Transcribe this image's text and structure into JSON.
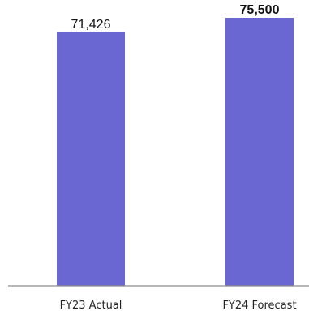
{
  "chart_data": {
    "type": "bar",
    "categories": [
      "FY23 Actual",
      "FY24 Forecast"
    ],
    "values": [
      71426,
      75500
    ],
    "data_labels": [
      "71,426",
      "75,500"
    ],
    "data_label_bold": [
      false,
      true
    ],
    "bar_color": "#6b67d2",
    "ylim": [
      0,
      75500
    ],
    "grid": false,
    "legend": "none",
    "title": "",
    "xlabel": "",
    "ylabel": ""
  }
}
